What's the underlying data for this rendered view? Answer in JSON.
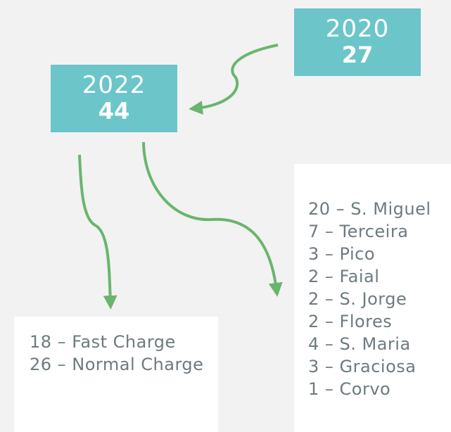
{
  "boxes": [
    {
      "year": "2020",
      "count": "27"
    },
    {
      "year": "2022",
      "count": "44"
    }
  ],
  "charge_types": [
    "18 – Fast Charge",
    "26 – Normal Charge"
  ],
  "islands": [
    "20 – S. Miguel",
    "7 – Terceira",
    "3 – Pico",
    "2 – Faial",
    "2 – S. Jorge",
    "2 – Flores",
    "4 – S. Maria",
    "3 – Graciosa",
    "1 – Corvo"
  ]
}
